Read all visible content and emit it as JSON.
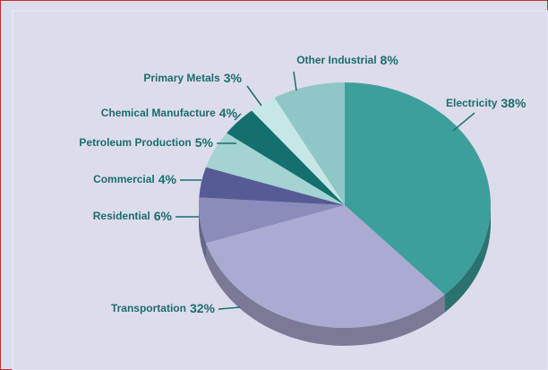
{
  "chart_data": {
    "type": "pie",
    "categories": [
      "Electricity",
      "Transportation",
      "Residential",
      "Commercial",
      "Petroleum Production",
      "Chemical Manufacture",
      "Primary Metals",
      "Other Industrial"
    ],
    "values": [
      38,
      32,
      6,
      4,
      5,
      4,
      3,
      8
    ],
    "value_labels": [
      "38%",
      "32%",
      "6%",
      "4%",
      "5%",
      "4%",
      "3%",
      "8%"
    ],
    "colors": [
      "#3d9f9b",
      "#aaaad2",
      "#8b8cbb",
      "#565b95",
      "#a3d3d2",
      "#13706f",
      "#c7e7e6",
      "#8fc7c6"
    ]
  }
}
